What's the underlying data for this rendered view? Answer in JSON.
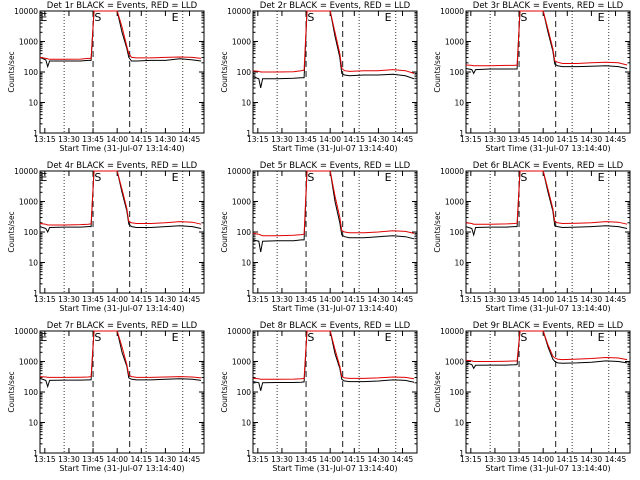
{
  "colors": {
    "events": "#000000",
    "lld": "#e00000",
    "axes": "#000000",
    "background": "#ffffff"
  },
  "x_ticks": [
    "13:15",
    "13:30",
    "13:45",
    "14:00",
    "14:15",
    "14:30",
    "14:45"
  ],
  "y_ticks": [
    "1",
    "10",
    "100",
    "1000",
    "10000"
  ],
  "chart_data": [
    {
      "type": "line",
      "title": "Det 1r BLACK = Events, RED = LLD",
      "xlabel": "Start Time (31-Jul-07 13:14:40)",
      "ylabel": "Counts/sec",
      "xlim": [
        13.2,
        14.9
      ],
      "ylim": [
        1,
        10000
      ],
      "yscale": "log",
      "grid": "dotted vertical",
      "markers": [
        {
          "label": "E",
          "x": 13.24
        },
        {
          "label": "S",
          "x": 13.8
        },
        {
          "label": "E",
          "x": 14.6
        }
      ],
      "dashed_lines_x": [
        13.75,
        14.13
      ],
      "dotted_lines_x": [
        13.45,
        14.3,
        14.68
      ],
      "x": [
        13.2,
        13.26,
        13.28,
        13.3,
        13.45,
        13.62,
        13.7,
        13.73,
        13.76,
        13.82,
        13.86,
        14.0,
        14.05,
        14.1,
        14.12,
        14.15,
        14.2,
        14.35,
        14.5,
        14.65,
        14.78,
        14.87
      ],
      "series": [
        {
          "name": "BLACK = Events",
          "values": [
            300,
            250,
            150,
            230,
            230,
            230,
            240,
            240,
            10000,
            10000,
            10000,
            10000,
            2000,
            600,
            300,
            230,
            230,
            240,
            240,
            270,
            250,
            230
          ]
        },
        {
          "name": "RED = LLD",
          "values": [
            300,
            280,
            270,
            260,
            260,
            265,
            280,
            280,
            10000,
            10000,
            10000,
            10000,
            3000,
            700,
            400,
            300,
            290,
            290,
            300,
            310,
            300,
            280
          ]
        }
      ]
    },
    {
      "type": "line",
      "title": "Det 2r BLACK = Events, RED = LLD",
      "xlabel": "Start Time (31-Jul-07 13:14:40)",
      "ylabel": "Counts/sec",
      "xlim": [
        13.2,
        14.9
      ],
      "ylim": [
        1,
        10000
      ],
      "yscale": "log",
      "grid": "dotted vertical",
      "markers": [
        {
          "label": "S",
          "x": 13.8
        },
        {
          "label": "E",
          "x": 14.6
        }
      ],
      "dashed_lines_x": [
        13.75,
        14.13
      ],
      "dotted_lines_x": [
        13.45,
        14.3,
        14.68
      ],
      "x": [
        13.2,
        13.26,
        13.28,
        13.3,
        13.45,
        13.62,
        13.7,
        13.73,
        13.76,
        13.82,
        13.86,
        14.0,
        14.05,
        14.1,
        14.12,
        14.15,
        14.2,
        14.35,
        14.5,
        14.65,
        14.78,
        14.87
      ],
      "series": [
        {
          "name": "BLACK = Events",
          "values": [
            70,
            60,
            30,
            60,
            60,
            62,
            65,
            65,
            10000,
            10000,
            10000,
            10000,
            1500,
            300,
            90,
            80,
            75,
            80,
            80,
            85,
            75,
            60
          ]
        },
        {
          "name": "RED = LLD",
          "values": [
            110,
            105,
            100,
            100,
            100,
            102,
            110,
            115,
            10000,
            10000,
            10000,
            10000,
            2000,
            400,
            130,
            110,
            105,
            110,
            110,
            120,
            110,
            90
          ]
        }
      ]
    },
    {
      "type": "line",
      "title": "Det 3r BLACK = Events, RED = LLD",
      "xlabel": "Start Time (31-Jul-07 13:14:40)",
      "ylabel": "Counts/sec",
      "xlim": [
        13.2,
        14.9
      ],
      "ylim": [
        1,
        10000
      ],
      "yscale": "log",
      "grid": "dotted vertical",
      "markers": [
        {
          "label": "S",
          "x": 13.8
        },
        {
          "label": "E",
          "x": 14.6
        }
      ],
      "dashed_lines_x": [
        13.75,
        14.13
      ],
      "dotted_lines_x": [
        13.45,
        14.3,
        14.68
      ],
      "x": [
        13.2,
        13.26,
        13.28,
        13.3,
        13.45,
        13.62,
        13.7,
        13.73,
        13.76,
        13.82,
        13.86,
        14.0,
        14.05,
        14.1,
        14.12,
        14.15,
        14.2,
        14.35,
        14.5,
        14.65,
        14.78,
        14.87
      ],
      "series": [
        {
          "name": "BLACK = Events",
          "values": [
            130,
            120,
            90,
            120,
            125,
            125,
            125,
            125,
            10000,
            10000,
            10000,
            10000,
            2000,
            500,
            180,
            160,
            150,
            150,
            155,
            160,
            150,
            130
          ]
        },
        {
          "name": "RED = LLD",
          "values": [
            170,
            165,
            160,
            160,
            160,
            165,
            165,
            170,
            10000,
            10000,
            10000,
            10000,
            2500,
            600,
            230,
            210,
            190,
            190,
            200,
            210,
            200,
            170
          ]
        }
      ]
    },
    {
      "type": "line",
      "title": "Det 4r BLACK = Events, RED = LLD",
      "xlabel": "Start Time (31-Jul-07 13:14:40)",
      "ylabel": "Counts/sec",
      "xlim": [
        13.2,
        14.9
      ],
      "ylim": [
        1,
        10000
      ],
      "yscale": "log",
      "grid": "dotted vertical",
      "markers": [
        {
          "label": "E",
          "x": 13.24
        },
        {
          "label": "S",
          "x": 13.8
        },
        {
          "label": "E",
          "x": 14.6
        }
      ],
      "dashed_lines_x": [
        13.75,
        14.13
      ],
      "dotted_lines_x": [
        13.45,
        14.3,
        14.68
      ],
      "x": [
        13.2,
        13.26,
        13.28,
        13.3,
        13.45,
        13.62,
        13.7,
        13.73,
        13.76,
        13.82,
        13.86,
        14.0,
        14.05,
        14.1,
        14.12,
        14.15,
        14.2,
        14.35,
        14.5,
        14.65,
        14.78,
        14.87
      ],
      "series": [
        {
          "name": "BLACK = Events",
          "values": [
            150,
            130,
            100,
            140,
            145,
            145,
            150,
            150,
            10000,
            10000,
            10000,
            10000,
            2000,
            500,
            180,
            150,
            140,
            140,
            150,
            160,
            150,
            130
          ]
        },
        {
          "name": "RED = LLD",
          "values": [
            190,
            180,
            170,
            170,
            170,
            175,
            180,
            185,
            10000,
            10000,
            10000,
            10000,
            2500,
            600,
            220,
            200,
            190,
            190,
            200,
            220,
            210,
            180
          ]
        }
      ]
    },
    {
      "type": "line",
      "title": "Det 5r BLACK = Events, RED = LLD",
      "xlabel": "Start Time (31-Jul-07 13:14:40)",
      "ylabel": "Counts/sec",
      "xlim": [
        13.2,
        14.9
      ],
      "ylim": [
        1,
        10000
      ],
      "yscale": "log",
      "grid": "dotted vertical",
      "markers": [
        {
          "label": "S",
          "x": 13.8
        },
        {
          "label": "E",
          "x": 14.6
        }
      ],
      "dashed_lines_x": [
        13.75,
        14.13
      ],
      "dotted_lines_x": [
        13.45,
        14.3,
        14.68
      ],
      "x": [
        13.2,
        13.26,
        13.28,
        13.3,
        13.45,
        13.62,
        13.7,
        13.73,
        13.76,
        13.82,
        13.86,
        14.0,
        14.05,
        14.1,
        14.12,
        14.15,
        14.2,
        14.35,
        14.5,
        14.65,
        14.78,
        14.87
      ],
      "series": [
        {
          "name": "BLACK = Events",
          "values": [
            55,
            50,
            22,
            50,
            52,
            52,
            55,
            55,
            10000,
            10000,
            10000,
            10000,
            1000,
            200,
            80,
            70,
            65,
            65,
            70,
            75,
            70,
            60
          ]
        },
        {
          "name": "RED = LLD",
          "values": [
            90,
            85,
            80,
            75,
            75,
            78,
            82,
            85,
            10000,
            10000,
            10000,
            10000,
            1500,
            300,
            110,
            100,
            95,
            95,
            100,
            110,
            105,
            90
          ]
        }
      ]
    },
    {
      "type": "line",
      "title": "Det 6r BLACK = Events, RED = LLD",
      "xlabel": "Start Time (31-Jul-07 13:14:40)",
      "ylabel": "Counts/sec",
      "xlim": [
        13.2,
        14.9
      ],
      "ylim": [
        1,
        10000
      ],
      "yscale": "log",
      "grid": "dotted vertical",
      "markers": [
        {
          "label": "S",
          "x": 13.8
        },
        {
          "label": "E",
          "x": 14.6
        }
      ],
      "dashed_lines_x": [
        13.75,
        14.13
      ],
      "dotted_lines_x": [
        13.45,
        14.3,
        14.68
      ],
      "x": [
        13.2,
        13.26,
        13.28,
        13.3,
        13.45,
        13.62,
        13.7,
        13.73,
        13.76,
        13.82,
        13.86,
        14.0,
        14.05,
        14.1,
        14.12,
        14.15,
        14.2,
        14.35,
        14.5,
        14.65,
        14.78,
        14.87
      ],
      "series": [
        {
          "name": "BLACK = Events",
          "values": [
            150,
            130,
            80,
            140,
            145,
            145,
            150,
            150,
            10000,
            10000,
            10000,
            10000,
            2000,
            500,
            160,
            150,
            140,
            145,
            150,
            160,
            150,
            130
          ]
        },
        {
          "name": "RED = LLD",
          "values": [
            200,
            190,
            180,
            180,
            180,
            185,
            190,
            195,
            10000,
            10000,
            10000,
            10000,
            2500,
            600,
            220,
            200,
            190,
            195,
            200,
            220,
            210,
            180
          ]
        }
      ]
    },
    {
      "type": "line",
      "title": "Det 7r BLACK = Events, RED = LLD",
      "xlabel": "Start Time (31-Jul-07 13:14:40)",
      "ylabel": "Counts/sec",
      "xlim": [
        13.2,
        14.9
      ],
      "ylim": [
        1,
        10000
      ],
      "yscale": "log",
      "grid": "dotted vertical",
      "markers": [
        {
          "label": "E",
          "x": 13.24
        },
        {
          "label": "S",
          "x": 13.8
        },
        {
          "label": "E",
          "x": 14.6
        }
      ],
      "dashed_lines_x": [
        13.75,
        14.13
      ],
      "dotted_lines_x": [
        13.45,
        14.3,
        14.68
      ],
      "x": [
        13.2,
        13.26,
        13.28,
        13.3,
        13.45,
        13.62,
        13.7,
        13.73,
        13.76,
        13.82,
        13.86,
        14.0,
        14.05,
        14.1,
        14.12,
        14.15,
        14.2,
        14.35,
        14.5,
        14.65,
        14.78,
        14.87
      ],
      "series": [
        {
          "name": "BLACK = Events",
          "values": [
            280,
            240,
            150,
            240,
            245,
            245,
            250,
            250,
            10000,
            10000,
            10000,
            10000,
            2000,
            700,
            290,
            260,
            250,
            250,
            260,
            270,
            260,
            240
          ]
        },
        {
          "name": "RED = LLD",
          "values": [
            320,
            310,
            300,
            300,
            300,
            305,
            310,
            320,
            10000,
            10000,
            10000,
            10000,
            3000,
            800,
            360,
            320,
            300,
            300,
            310,
            320,
            310,
            290
          ]
        }
      ]
    },
    {
      "type": "line",
      "title": "Det 8r BLACK = Events, RED = LLD",
      "xlabel": "Start Time (31-Jul-07 13:14:40)",
      "ylabel": "Counts/sec",
      "xlim": [
        13.2,
        14.9
      ],
      "ylim": [
        1,
        10000
      ],
      "yscale": "log",
      "grid": "dotted vertical",
      "markers": [
        {
          "label": "S",
          "x": 13.8
        },
        {
          "label": "E",
          "x": 14.6
        }
      ],
      "dashed_lines_x": [
        13.75,
        14.13
      ],
      "dotted_lines_x": [
        13.45,
        14.3,
        14.68
      ],
      "x": [
        13.2,
        13.26,
        13.28,
        13.3,
        13.45,
        13.62,
        13.7,
        13.73,
        13.76,
        13.82,
        13.86,
        14.0,
        14.05,
        14.1,
        14.12,
        14.15,
        14.2,
        14.35,
        14.5,
        14.65,
        14.78,
        14.87
      ],
      "series": [
        {
          "name": "BLACK = Events",
          "values": [
            220,
            200,
            110,
            200,
            205,
            205,
            210,
            215,
            10000,
            10000,
            10000,
            10000,
            1800,
            600,
            260,
            230,
            220,
            220,
            230,
            250,
            240,
            210
          ]
        },
        {
          "name": "RED = LLD",
          "values": [
            280,
            270,
            260,
            260,
            260,
            265,
            270,
            280,
            10000,
            10000,
            10000,
            10000,
            2500,
            700,
            320,
            290,
            280,
            280,
            290,
            310,
            300,
            270
          ]
        }
      ]
    },
    {
      "type": "line",
      "title": "Det 9r BLACK = Events, RED = LLD",
      "xlabel": "Start Time (31-Jul-07 13:14:40)",
      "ylabel": "Counts/sec",
      "xlim": [
        13.2,
        14.9
      ],
      "ylim": [
        1,
        10000
      ],
      "yscale": "log",
      "grid": "dotted vertical",
      "markers": [
        {
          "label": "S",
          "x": 13.8
        },
        {
          "label": "E",
          "x": 14.6
        }
      ],
      "dashed_lines_x": [
        13.75,
        14.13
      ],
      "dotted_lines_x": [
        13.45,
        14.3,
        14.68
      ],
      "x": [
        13.2,
        13.26,
        13.28,
        13.3,
        13.45,
        13.62,
        13.7,
        13.73,
        13.76,
        13.82,
        13.86,
        14.0,
        14.05,
        14.1,
        14.12,
        14.15,
        14.2,
        14.35,
        14.5,
        14.65,
        14.78,
        14.87
      ],
      "series": [
        {
          "name": "BLACK = Events",
          "values": [
            900,
            800,
            600,
            750,
            760,
            760,
            780,
            790,
            10000,
            10000,
            10000,
            10000,
            3000,
            1200,
            1000,
            900,
            880,
            900,
            950,
            1050,
            1000,
            900
          ]
        },
        {
          "name": "RED = LLD",
          "values": [
            1100,
            1050,
            1000,
            1000,
            1000,
            1020,
            1040,
            1050,
            10000,
            10000,
            10000,
            10000,
            3500,
            1500,
            1300,
            1200,
            1150,
            1200,
            1250,
            1350,
            1300,
            1150
          ]
        }
      ]
    }
  ]
}
